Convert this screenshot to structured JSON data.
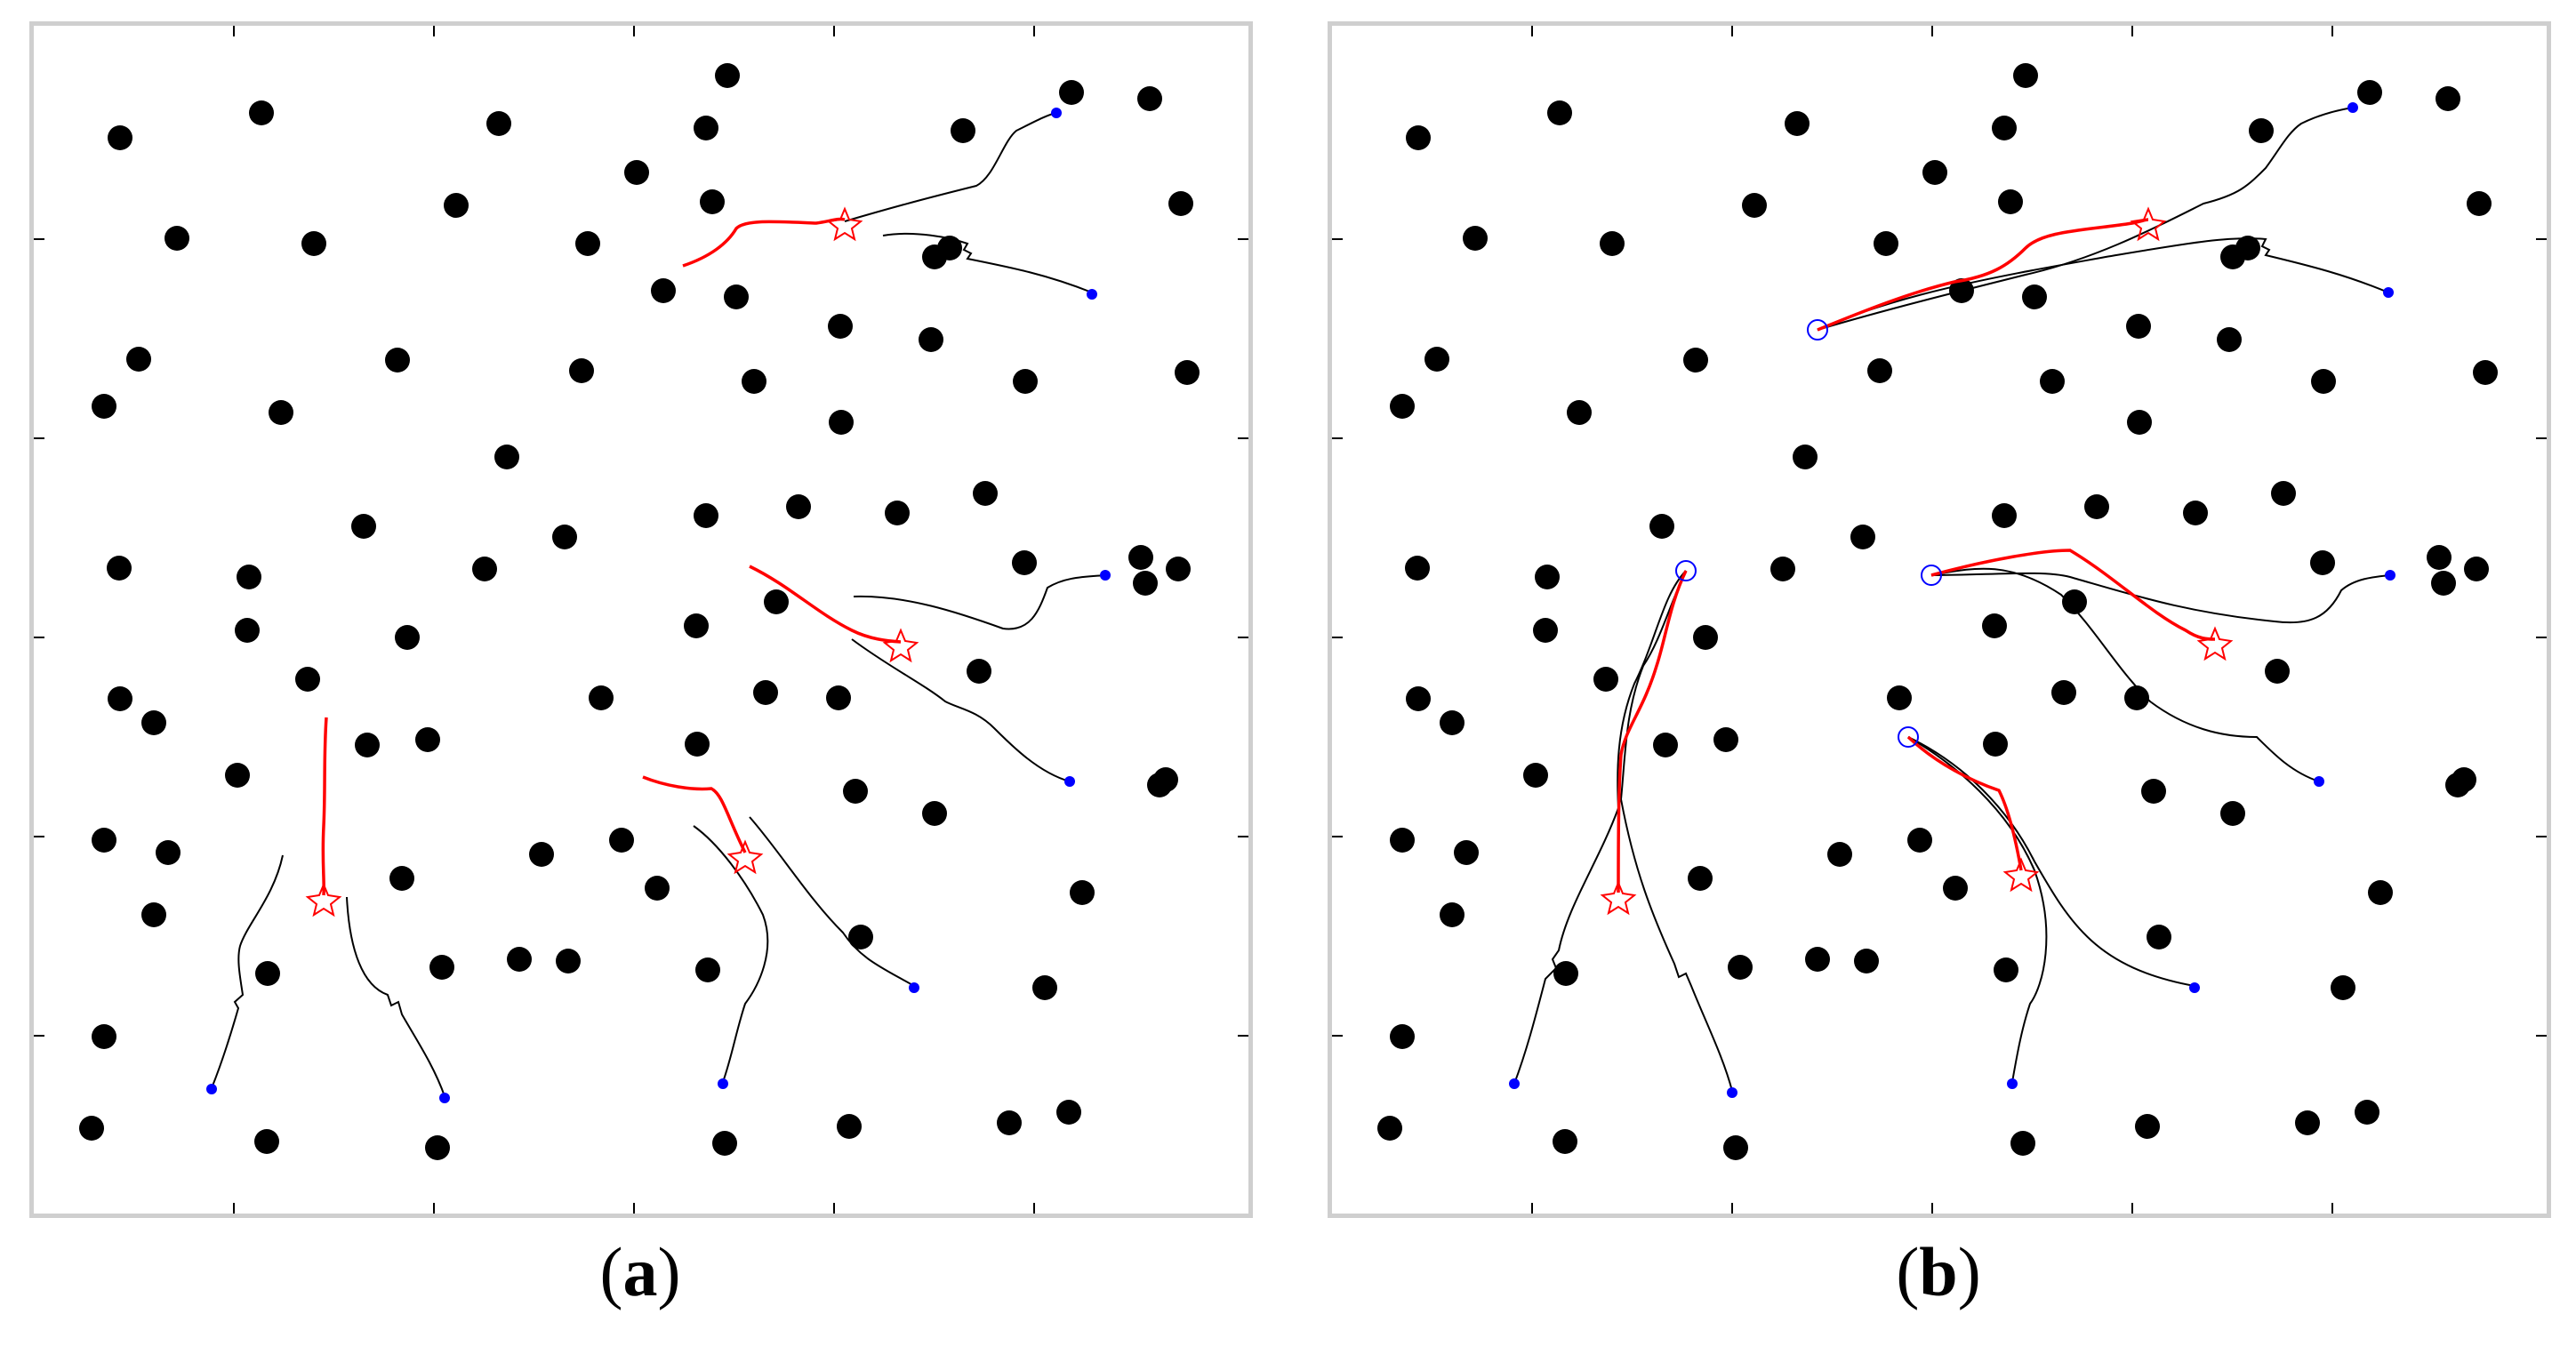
{
  "panels": [
    {
      "label_open": "(",
      "label_letter": "a",
      "label_close": ")",
      "obstacle_color": "#000000",
      "planned_path_color": "#ff0000",
      "trajectory_color": "#000000",
      "start_marker_color": "#0000ff",
      "goal_marker": "red-star-outline"
    },
    {
      "label_open": "(",
      "label_letter": "b",
      "label_close": ")",
      "obstacle_color": "#000000",
      "planned_path_color": "#ff0000",
      "trajectory_color": "#000000",
      "start_marker_color": "#0000ff",
      "goal_marker": "red-star-outline",
      "waypoint_marker": "blue-circle-outline"
    }
  ]
}
